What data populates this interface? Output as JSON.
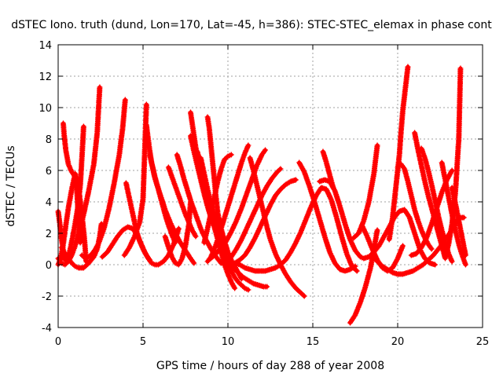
{
  "chart_data": {
    "type": "scatter",
    "title": "dSTEC Iono. truth (dund, Lon=170, Lat=-45, h=386): STEC-STEC_elemax in phase cont",
    "xlabel": "GPS time / hours of day 288 of year 2008",
    "ylabel": "dSTEC  / TECUs",
    "xlim": [
      0,
      25
    ],
    "ylim": [
      -4,
      14
    ],
    "xticks": [
      "0",
      "5",
      "10",
      "15",
      "20",
      "25"
    ],
    "yticks": [
      "-4",
      "-2",
      "0",
      "2",
      "4",
      "6",
      "8",
      "10",
      "12",
      "14"
    ],
    "grid": true,
    "marker": "plus",
    "color": "#ff0000",
    "series": [
      {
        "x": [
          0.0,
          0.1,
          0.2,
          0.3,
          0.4
        ],
        "y": [
          3.4,
          2.6,
          1.6,
          0.9,
          0.3
        ]
      },
      {
        "x": [
          0.0,
          0.15,
          0.3,
          0.45,
          0.6,
          0.8,
          1.0,
          1.2,
          1.4,
          1.55,
          1.65
        ],
        "y": [
          0.0,
          0.4,
          1.3,
          2.5,
          3.6,
          4.8,
          5.8,
          4.9,
          3.2,
          1.6,
          0.2
        ]
      },
      {
        "x": [
          0.0,
          0.2,
          0.4,
          0.6,
          0.8,
          1.0,
          1.2,
          1.5,
          1.8,
          2.1,
          2.3,
          2.45
        ],
        "y": [
          0.4,
          0.1,
          0.0,
          0.2,
          0.6,
          1.2,
          2.0,
          3.2,
          4.7,
          6.4,
          8.4,
          11.3
        ]
      },
      {
        "x": [
          0.3,
          0.35,
          0.45,
          0.6,
          0.8,
          1.0,
          1.1,
          1.2,
          1.3
        ],
        "y": [
          9.0,
          8.3,
          7.3,
          6.4,
          5.9,
          5.6,
          4.7,
          3.0,
          1.4
        ]
      },
      {
        "x": [
          0.5,
          0.6,
          0.75,
          0.95,
          1.15,
          1.3,
          1.4,
          1.5
        ],
        "y": [
          0.2,
          0.5,
          1.2,
          2.3,
          3.6,
          5.0,
          6.8,
          8.8
        ]
      },
      {
        "x": [
          0.2,
          0.4,
          0.6,
          0.8,
          1.0,
          1.2,
          1.5,
          1.8,
          2.1,
          2.3,
          2.45,
          2.55
        ],
        "y": [
          1.1,
          0.7,
          0.4,
          0.1,
          -0.1,
          -0.2,
          -0.2,
          0.1,
          0.5,
          1.0,
          1.8,
          2.6
        ]
      },
      {
        "x": [
          1.4,
          1.6,
          1.8,
          2.0,
          2.2,
          2.4,
          2.7,
          3.0,
          3.3,
          3.6,
          3.8,
          3.95
        ],
        "y": [
          0.6,
          0.4,
          0.5,
          0.7,
          1.0,
          1.4,
          2.3,
          3.6,
          5.2,
          7.0,
          8.7,
          10.5
        ]
      },
      {
        "x": [
          2.6,
          2.9,
          3.2,
          3.5,
          3.8,
          4.1,
          4.4,
          4.7,
          4.9,
          5.1,
          5.3,
          5.5,
          5.7,
          5.9,
          6.2,
          6.5,
          6.8,
          7.1
        ],
        "y": [
          0.5,
          0.8,
          1.3,
          1.8,
          2.2,
          2.4,
          2.3,
          1.8,
          1.3,
          0.8,
          0.4,
          0.1,
          0.0,
          0.0,
          0.2,
          0.6,
          1.3,
          2.3
        ]
      },
      {
        "x": [
          4.0,
          4.2,
          4.4,
          4.6,
          4.8,
          5.0,
          5.2,
          5.4
        ],
        "y": [
          5.2,
          4.2,
          3.2,
          2.2,
          1.5,
          1.0,
          0.6,
          0.3
        ]
      },
      {
        "x": [
          3.9,
          4.2,
          4.5,
          4.8,
          5.0,
          5.2
        ],
        "y": [
          0.6,
          1.1,
          1.8,
          2.7,
          4.2,
          10.2
        ]
      },
      {
        "x": [
          5.2,
          5.35,
          5.5,
          5.7,
          5.9,
          6.1,
          6.3,
          6.5,
          6.7,
          6.9
        ],
        "y": [
          8.9,
          7.6,
          6.5,
          5.6,
          4.8,
          4.0,
          3.2,
          2.5,
          1.9,
          1.4
        ]
      },
      {
        "x": [
          5.4,
          5.7,
          6.0,
          6.3,
          6.6,
          6.9,
          7.2,
          7.5,
          7.8,
          8.0
        ],
        "y": [
          7.0,
          5.5,
          4.5,
          3.5,
          2.7,
          2.0,
          1.4,
          0.9,
          0.4,
          0.1
        ]
      },
      {
        "x": [
          6.3,
          6.5,
          6.7,
          6.9,
          7.1,
          7.3,
          7.5,
          7.7,
          7.8
        ],
        "y": [
          1.8,
          1.1,
          0.5,
          0.1,
          0.0,
          0.4,
          1.2,
          2.6,
          4.0
        ]
      },
      {
        "x": [
          6.5,
          6.7,
          6.9,
          7.1,
          7.3,
          7.5,
          7.7,
          7.9,
          8.1
        ],
        "y": [
          6.2,
          5.6,
          5.0,
          4.4,
          3.8,
          3.2,
          2.7,
          2.2,
          1.8
        ]
      },
      {
        "x": [
          7.0,
          7.2,
          7.4,
          7.6,
          7.8,
          8.0,
          8.2,
          8.4,
          8.7,
          9.0,
          9.3,
          9.6
        ],
        "y": [
          7.0,
          6.3,
          5.5,
          4.8,
          4.1,
          3.5,
          2.9,
          2.3,
          1.6,
          1.0,
          0.5,
          0.1
        ]
      },
      {
        "x": [
          7.8,
          7.95,
          8.1,
          8.3,
          8.5,
          8.7,
          8.9,
          9.1
        ],
        "y": [
          9.7,
          8.6,
          7.5,
          6.4,
          5.3,
          4.3,
          3.4,
          2.6
        ]
      },
      {
        "x": [
          7.8,
          8.0,
          8.2,
          8.4,
          8.6,
          8.8,
          9.0,
          9.2,
          9.4,
          9.6,
          9.8
        ],
        "y": [
          8.2,
          7.2,
          6.3,
          5.4,
          4.5,
          3.7,
          3.0,
          2.4,
          1.9,
          1.6,
          1.4
        ]
      },
      {
        "x": [
          8.2,
          8.4,
          8.6,
          8.8,
          9.0,
          9.2,
          9.4,
          9.6,
          9.8,
          10.0,
          10.2,
          10.4
        ],
        "y": [
          7.2,
          6.3,
          5.3,
          4.3,
          3.3,
          2.4,
          1.6,
          0.8,
          0.0,
          -0.6,
          -1.1,
          -1.5
        ]
      },
      {
        "x": [
          8.4,
          8.6,
          8.8,
          9.0,
          9.2,
          9.4,
          9.6,
          9.8,
          10.0,
          10.2,
          10.4,
          10.6,
          10.8,
          11.0,
          11.2
        ],
        "y": [
          6.8,
          5.8,
          4.8,
          3.9,
          3.0,
          2.2,
          1.4,
          0.7,
          0.1,
          -0.4,
          -0.8,
          -1.1,
          -1.3,
          -1.5,
          -1.6
        ]
      },
      {
        "x": [
          8.8,
          8.9,
          9.0,
          9.1,
          9.2,
          9.3,
          9.4,
          9.6,
          9.8,
          10.0,
          10.2,
          10.4,
          10.6,
          10.8
        ],
        "y": [
          9.4,
          8.7,
          7.6,
          6.5,
          5.4,
          4.3,
          3.3,
          2.3,
          1.5,
          0.8,
          0.3,
          -0.1,
          -0.5,
          -0.9
        ]
      },
      {
        "x": [
          8.6,
          8.8,
          9.0,
          9.2,
          9.4,
          9.6,
          9.8,
          10.0,
          10.2
        ],
        "y": [
          1.4,
          2.3,
          3.3,
          4.3,
          5.3,
          6.1,
          6.7,
          6.9,
          7.0
        ]
      },
      {
        "x": [
          8.8,
          9.0,
          9.2,
          9.4,
          9.6,
          9.8,
          10.0,
          10.2,
          10.4,
          10.6,
          10.8,
          11.0,
          11.2
        ],
        "y": [
          0.2,
          0.5,
          1.0,
          1.6,
          2.3,
          3.0,
          3.7,
          4.4,
          5.1,
          5.8,
          6.5,
          7.1,
          7.6
        ]
      },
      {
        "x": [
          9.0,
          9.3,
          9.6,
          9.9,
          10.2,
          10.5,
          10.8,
          11.1,
          11.4,
          11.7,
          12.0,
          12.2
        ],
        "y": [
          0.4,
          0.7,
          1.1,
          1.5,
          2.1,
          2.8,
          3.6,
          4.5,
          5.4,
          6.3,
          7.0,
          7.3
        ]
      },
      {
        "x": [
          9.6,
          9.9,
          10.2,
          10.5,
          10.8,
          11.1,
          11.4,
          11.7,
          12.0,
          12.3,
          12.6,
          12.9,
          13.1
        ],
        "y": [
          0.1,
          0.2,
          0.5,
          1.0,
          1.6,
          2.3,
          3.0,
          3.7,
          4.4,
          5.0,
          5.5,
          5.9,
          6.1
        ]
      },
      {
        "x": [
          9.8,
          10.1,
          10.4,
          10.7,
          11.0,
          11.3,
          11.6,
          11.9,
          12.2,
          12.5,
          12.8,
          13.1,
          13.4,
          13.7,
          14.0
        ],
        "y": [
          0.0,
          0.0,
          0.1,
          0.3,
          0.6,
          1.1,
          1.7,
          2.4,
          3.1,
          3.8,
          4.4,
          4.8,
          5.1,
          5.3,
          5.4
        ]
      },
      {
        "x": [
          11.3,
          11.5,
          11.7,
          11.9,
          12.1,
          12.3,
          12.5,
          12.8,
          13.1,
          13.4,
          13.7,
          14.0,
          14.3,
          14.5
        ],
        "y": [
          6.8,
          6.0,
          5.1,
          4.2,
          3.3,
          2.4,
          1.6,
          0.7,
          0.0,
          -0.6,
          -1.1,
          -1.5,
          -1.8,
          -2.0
        ]
      },
      {
        "x": [
          10.0,
          10.3,
          10.6,
          10.9,
          11.2,
          11.5,
          11.8,
          12.1,
          12.3
        ],
        "y": [
          0.2,
          -0.2,
          -0.5,
          -0.8,
          -1.0,
          -1.2,
          -1.3,
          -1.4,
          -1.4
        ]
      },
      {
        "x": [
          10.4,
          10.7,
          11.0,
          11.3,
          11.6,
          11.9,
          12.2,
          12.5,
          12.8,
          13.1,
          13.4,
          13.7,
          14.0,
          14.3,
          14.6,
          14.9,
          15.2,
          15.5,
          15.8,
          16.1,
          16.4,
          16.7,
          17.0,
          17.3,
          17.6
        ],
        "y": [
          0.1,
          0.0,
          -0.2,
          -0.3,
          -0.4,
          -0.4,
          -0.4,
          -0.3,
          -0.2,
          0.0,
          0.3,
          0.8,
          1.4,
          2.1,
          2.9,
          3.7,
          4.4,
          4.9,
          4.8,
          4.1,
          3.0,
          1.8,
          0.7,
          -0.1,
          -0.4
        ]
      },
      {
        "x": [
          14.2,
          14.5,
          14.8,
          15.1,
          15.4,
          15.7,
          16.0,
          16.3,
          16.6,
          16.9,
          17.2,
          17.5
        ],
        "y": [
          6.5,
          5.9,
          5.0,
          4.0,
          2.9,
          1.8,
          0.8,
          0.1,
          -0.3,
          -0.4,
          -0.3,
          -0.1
        ]
      },
      {
        "x": [
          15.4,
          15.7,
          16.0,
          16.3,
          16.6,
          16.9,
          17.2,
          17.5,
          17.8,
          18.0,
          18.3,
          18.6,
          18.9,
          19.2,
          19.5,
          19.8,
          20.1,
          20.4,
          20.7,
          21.0,
          21.3,
          21.6,
          21.9,
          22.2
        ],
        "y": [
          5.3,
          5.4,
          5.3,
          4.7,
          3.7,
          2.6,
          1.6,
          0.9,
          0.5,
          0.4,
          0.5,
          0.8,
          1.2,
          1.8,
          2.4,
          3.0,
          3.4,
          3.5,
          3.0,
          2.0,
          1.0,
          0.4,
          0.1,
          0.0
        ]
      },
      {
        "x": [
          15.6,
          15.8,
          16.0,
          16.2
        ],
        "y": [
          7.2,
          6.5,
          5.7,
          4.9
        ]
      },
      {
        "x": [
          17.2,
          17.5,
          17.8,
          18.1,
          18.4,
          18.6,
          18.8
        ],
        "y": [
          -3.7,
          -3.2,
          -2.4,
          -1.4,
          -0.2,
          1.0,
          2.2
        ]
      },
      {
        "x": [
          17.4,
          17.7,
          18.0,
          18.3,
          18.6,
          18.8
        ],
        "y": [
          1.7,
          2.0,
          2.8,
          4.0,
          5.8,
          7.6
        ]
      },
      {
        "x": [
          17.9,
          18.2,
          18.5,
          18.8,
          19.1,
          19.4,
          19.7,
          20.0,
          20.3
        ],
        "y": [
          2.5,
          1.8,
          1.0,
          0.3,
          -0.2,
          -0.4,
          -0.2,
          0.4,
          1.2
        ]
      },
      {
        "x": [
          18.5,
          18.8,
          19.1,
          19.4,
          19.7,
          20.0,
          20.3,
          20.6,
          20.9,
          21.2,
          21.5,
          21.8,
          22.1,
          22.4,
          22.7,
          23.0,
          23.3,
          23.6,
          23.9
        ],
        "y": [
          0.6,
          0.2,
          -0.1,
          -0.3,
          -0.5,
          -0.6,
          -0.6,
          -0.5,
          -0.4,
          -0.2,
          0.0,
          0.3,
          0.6,
          1.0,
          1.4,
          1.9,
          2.4,
          3.0,
          3.0
        ]
      },
      {
        "x": [
          19.5,
          19.7,
          19.9,
          20.1,
          20.2,
          20.3,
          20.45,
          20.6
        ],
        "y": [
          1.6,
          3.0,
          5.0,
          7.0,
          8.5,
          9.8,
          11.2,
          12.6
        ]
      },
      {
        "x": [
          20.0,
          20.2,
          20.4,
          20.6,
          20.8,
          21.0,
          21.2,
          21.4,
          21.6,
          21.8,
          22.0
        ],
        "y": [
          6.2,
          6.4,
          6.1,
          5.3,
          4.4,
          3.5,
          2.8,
          2.2,
          1.7,
          1.3,
          1.0
        ]
      },
      {
        "x": [
          20.8,
          21.1,
          21.4,
          21.7,
          22.0,
          22.3,
          22.6,
          22.9,
          23.2
        ],
        "y": [
          0.6,
          0.7,
          1.1,
          1.7,
          2.6,
          3.6,
          4.6,
          5.4,
          6.0
        ]
      },
      {
        "x": [
          21.0,
          21.2,
          21.4,
          21.6,
          21.8,
          22.0,
          22.2,
          22.4,
          22.6,
          22.8
        ],
        "y": [
          8.4,
          7.3,
          6.3,
          5.3,
          4.4,
          3.6,
          2.8,
          2.0,
          1.2,
          0.4
        ]
      },
      {
        "x": [
          21.4,
          21.6,
          21.8,
          22.0,
          22.2,
          22.4,
          22.6,
          22.8,
          23.0,
          23.2
        ],
        "y": [
          7.4,
          6.8,
          6.0,
          5.1,
          4.1,
          3.1,
          2.2,
          1.4,
          0.7,
          0.2
        ]
      },
      {
        "x": [
          22.8,
          23.0,
          23.2,
          23.4,
          23.6,
          23.7
        ],
        "y": [
          0.5,
          1.3,
          2.6,
          4.6,
          8.0,
          12.5
        ]
      },
      {
        "x": [
          22.6,
          22.8,
          23.0,
          23.2,
          23.4,
          23.6,
          23.8,
          24.0
        ],
        "y": [
          6.5,
          5.4,
          4.3,
          3.2,
          2.2,
          1.3,
          0.6,
          0.0
        ]
      },
      {
        "x": [
          23.2,
          23.4,
          23.6,
          23.8,
          24.0
        ],
        "y": [
          4.9,
          3.9,
          2.8,
          1.7,
          0.6
        ]
      }
    ]
  }
}
